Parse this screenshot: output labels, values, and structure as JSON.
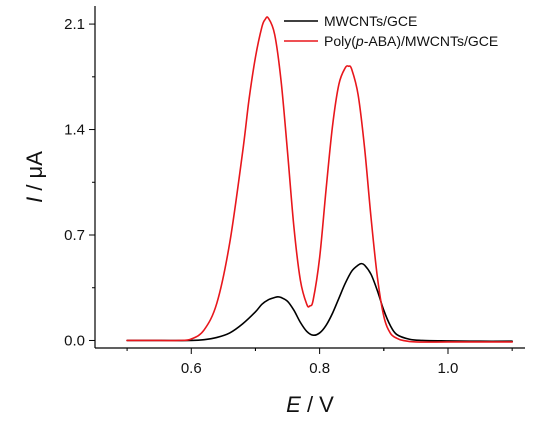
{
  "chart_data": {
    "type": "line",
    "xlabel": {
      "symbol": "E",
      "unit": " / V"
    },
    "ylabel": {
      "symbol": "I",
      "unit": " / μA"
    },
    "xlim": [
      0.45,
      1.12
    ],
    "ylim": [
      -0.05,
      2.22
    ],
    "x_ticks": [
      "0.6",
      "0.8",
      "1.0"
    ],
    "y_ticks": [
      "0.0",
      "0.7",
      "1.4",
      "2.1"
    ],
    "x_tick_values": [
      0.6,
      0.8,
      1.0
    ],
    "y_tick_values": [
      0.0,
      0.7,
      1.4,
      2.1
    ],
    "legend_position": "top-right",
    "series": [
      {
        "name": "MWCNTs/GCE",
        "color": "#000000",
        "x": [
          0.5,
          0.55,
          0.6,
          0.62,
          0.64,
          0.66,
          0.68,
          0.7,
          0.71,
          0.72,
          0.73,
          0.735,
          0.74,
          0.75,
          0.76,
          0.77,
          0.78,
          0.79,
          0.8,
          0.81,
          0.82,
          0.83,
          0.84,
          0.85,
          0.86,
          0.865,
          0.87,
          0.88,
          0.89,
          0.9,
          0.91,
          0.92,
          0.94,
          0.96,
          1.0,
          1.05,
          1.1
        ],
        "values": [
          0.0,
          0.0,
          0.0,
          0.005,
          0.02,
          0.05,
          0.11,
          0.19,
          0.24,
          0.27,
          0.285,
          0.29,
          0.285,
          0.26,
          0.2,
          0.12,
          0.06,
          0.035,
          0.05,
          0.1,
          0.18,
          0.28,
          0.38,
          0.46,
          0.5,
          0.51,
          0.5,
          0.44,
          0.33,
          0.2,
          0.1,
          0.04,
          0.008,
          0.0,
          -0.003,
          -0.005,
          -0.005
        ],
        "label_parts": [
          "MWCNTs/GCE"
        ]
      },
      {
        "name": "Poly(p-ABA)/MWCNTs/GCE",
        "color": "#e8171c",
        "x": [
          0.5,
          0.55,
          0.58,
          0.6,
          0.62,
          0.64,
          0.66,
          0.68,
          0.69,
          0.7,
          0.71,
          0.715,
          0.72,
          0.73,
          0.74,
          0.75,
          0.76,
          0.77,
          0.78,
          0.785,
          0.79,
          0.8,
          0.81,
          0.82,
          0.83,
          0.84,
          0.845,
          0.85,
          0.86,
          0.87,
          0.88,
          0.89,
          0.9,
          0.91,
          0.92,
          0.93,
          0.95,
          1.0,
          1.05,
          1.1
        ],
        "values": [
          0.0,
          0.0,
          0.0,
          0.01,
          0.07,
          0.25,
          0.65,
          1.25,
          1.6,
          1.88,
          2.08,
          2.13,
          2.14,
          2.03,
          1.72,
          1.25,
          0.75,
          0.4,
          0.24,
          0.23,
          0.27,
          0.55,
          1.0,
          1.42,
          1.7,
          1.81,
          1.82,
          1.8,
          1.63,
          1.28,
          0.82,
          0.42,
          0.16,
          0.05,
          0.015,
          0.0,
          -0.01,
          -0.01,
          -0.01,
          -0.01
        ],
        "label_parts": [
          "Poly(",
          "p",
          "-ABA)/MWCNTs/GCE"
        ]
      }
    ]
  }
}
